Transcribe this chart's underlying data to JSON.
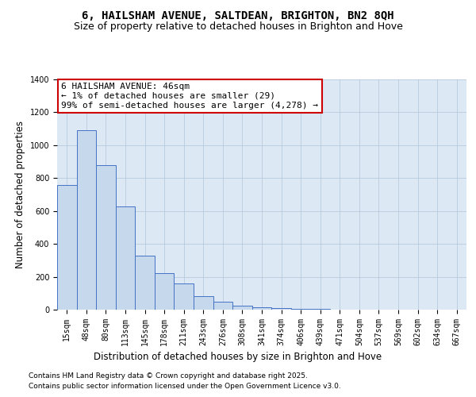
{
  "title": "6, HAILSHAM AVENUE, SALTDEAN, BRIGHTON, BN2 8QH",
  "subtitle": "Size of property relative to detached houses in Brighton and Hove",
  "xlabel": "Distribution of detached houses by size in Brighton and Hove",
  "ylabel": "Number of detached properties",
  "footnote1": "Contains HM Land Registry data © Crown copyright and database right 2025.",
  "footnote2": "Contains public sector information licensed under the Open Government Licence v3.0.",
  "annotation_title": "6 HAILSHAM AVENUE: 46sqm",
  "annotation_line1": "← 1% of detached houses are smaller (29)",
  "annotation_line2": "99% of semi-detached houses are larger (4,278) →",
  "categories": [
    "15sqm",
    "48sqm",
    "80sqm",
    "113sqm",
    "145sqm",
    "178sqm",
    "211sqm",
    "243sqm",
    "276sqm",
    "308sqm",
    "341sqm",
    "374sqm",
    "406sqm",
    "439sqm",
    "471sqm",
    "504sqm",
    "537sqm",
    "569sqm",
    "602sqm",
    "634sqm",
    "667sqm"
  ],
  "values": [
    760,
    1090,
    880,
    630,
    330,
    220,
    160,
    80,
    50,
    25,
    15,
    8,
    5,
    3,
    2,
    1,
    1,
    1,
    0,
    0,
    0
  ],
  "bar_color": "#c5d8ec",
  "bar_edge_color": "#4472c4",
  "annotation_box_color": "#ffffff",
  "annotation_box_edge": "#cc0000",
  "ylim": [
    0,
    1400
  ],
  "yticks": [
    0,
    200,
    400,
    600,
    800,
    1000,
    1200,
    1400
  ],
  "bg_color": "#ffffff",
  "plot_bg_color": "#dce9f5",
  "grid_color": "#b0c4d8",
  "title_fontsize": 10,
  "subtitle_fontsize": 9,
  "axis_label_fontsize": 8.5,
  "tick_fontsize": 7,
  "annotation_fontsize": 8,
  "footnote_fontsize": 6.5
}
